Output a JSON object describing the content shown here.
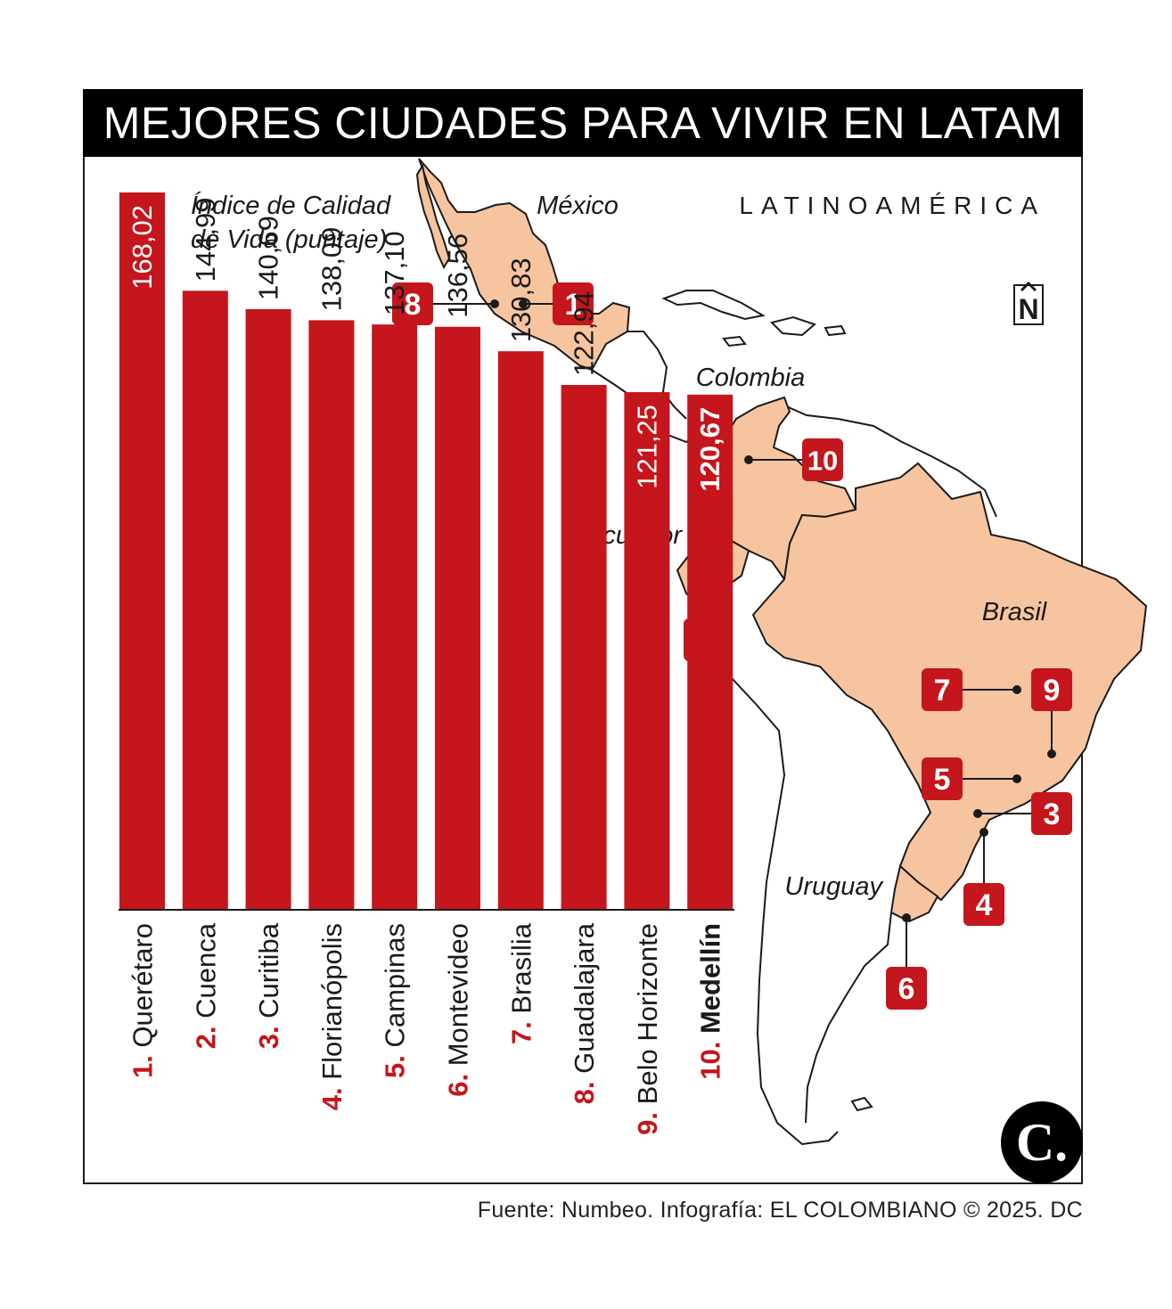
{
  "title": "MEJORES CIUDADES PARA VIVIR EN LATAM",
  "region_label": "LATINOAMÉRICA",
  "north_label": "N",
  "source": "Fuente: Numbeo. Infografía: EL COLOMBIANO © 2025. DC",
  "logo_letter": "C.",
  "colors": {
    "bar": "#c4161c",
    "land_highlight": "#f7c4a0",
    "outline": "#1a1a1a",
    "text": "#1a1a1a"
  },
  "countries": [
    "México",
    "Colombia",
    "Ecuador",
    "Brasil",
    "Uruguay"
  ],
  "chart_data": {
    "type": "bar",
    "orientation": "vertical",
    "title": "",
    "ylabel": "Índice de Calidad de Vida (puntaje)",
    "ylabel_lines": [
      "Índice de Calidad",
      "de Vida (puntaje)"
    ],
    "ylim": [
      0,
      168.02
    ],
    "grid": false,
    "categories": [
      "Querétaro",
      "Cuenca",
      "Curitiba",
      "Florianópolis",
      "Campinas",
      "Montevideo",
      "Brasilia",
      "Guadalajara",
      "Belo Horizonte",
      "Medellín"
    ],
    "ranks": [
      "1.",
      "2.",
      "3.",
      "4.",
      "5.",
      "6.",
      "7.",
      "8.",
      "9.",
      "10."
    ],
    "values": [
      168.02,
      144.99,
      140.69,
      138.09,
      137.1,
      136.56,
      130.83,
      122.94,
      121.25,
      120.67
    ],
    "value_labels": [
      "168,02",
      "144,99",
      "140,69",
      "138,09",
      "137,10",
      "136,56",
      "130,83",
      "122,94",
      "121,25",
      "120,67"
    ],
    "label_inside": [
      true,
      false,
      false,
      false,
      false,
      false,
      false,
      false,
      true,
      true
    ],
    "highlight_index": 9
  }
}
